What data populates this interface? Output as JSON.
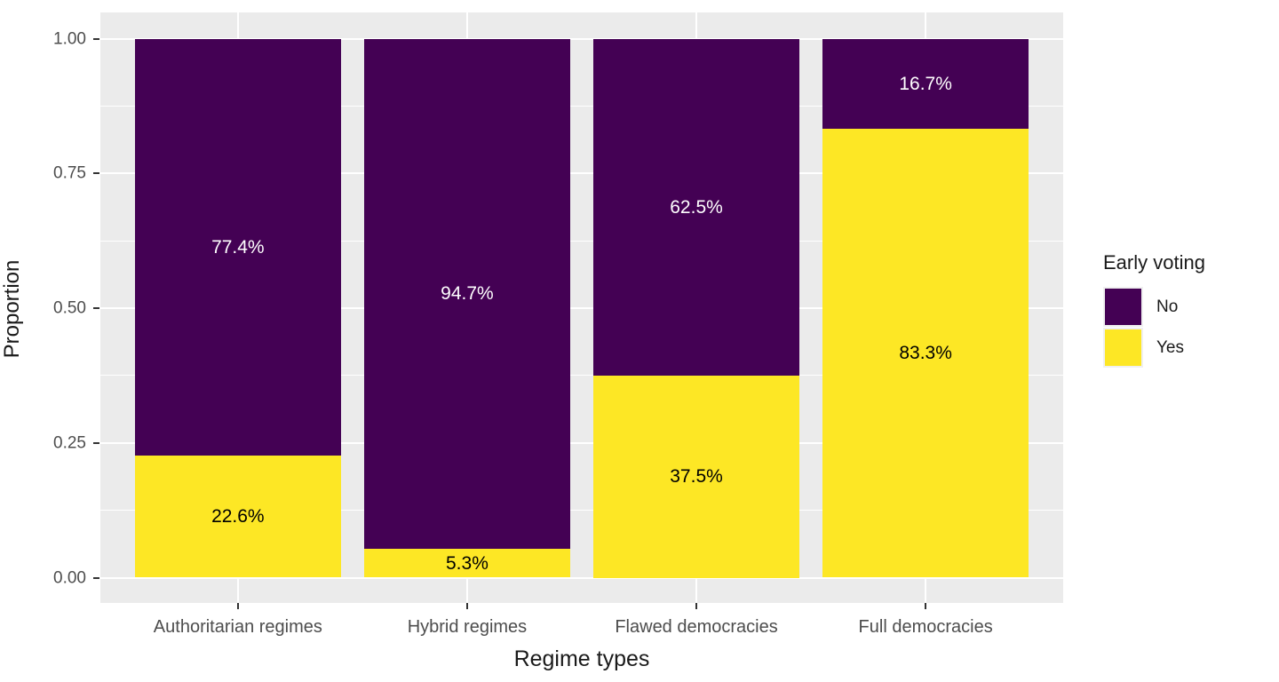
{
  "chart_data": {
    "type": "bar",
    "stacked": true,
    "orientation": "vertical",
    "xlabel": "Regime types",
    "ylabel": "Proportion",
    "categories": [
      "Authoritarian regimes",
      "Hybrid regimes",
      "Flawed democracies",
      "Full democracies"
    ],
    "series": [
      {
        "name": "No",
        "color": "#440154",
        "values": [
          0.774,
          0.947,
          0.625,
          0.167
        ],
        "labels": [
          "77.4%",
          "94.7%",
          "62.5%",
          "16.7%"
        ],
        "label_color": "#FFFFFF"
      },
      {
        "name": "Yes",
        "color": "#FDE725",
        "values": [
          0.226,
          0.053,
          0.375,
          0.833
        ],
        "labels": [
          "22.6%",
          "5.3%",
          "37.5%",
          "83.3%"
        ],
        "label_color": "#000000"
      }
    ],
    "y_ticks": [
      {
        "value": 0.0,
        "label": "0.00"
      },
      {
        "value": 0.25,
        "label": "0.25"
      },
      {
        "value": 0.5,
        "label": "0.50"
      },
      {
        "value": 0.75,
        "label": "0.75"
      },
      {
        "value": 1.0,
        "label": "1.00"
      }
    ],
    "y_minor_ticks": [
      0.125,
      0.375,
      0.625,
      0.875
    ],
    "ylim": [
      0,
      1
    ],
    "grid": true,
    "panel_background": "#EBEBEB",
    "gridline_color": "#FFFFFF",
    "legend": {
      "title": "Early voting",
      "position": "right",
      "entries": [
        {
          "label": "No",
          "color": "#440154"
        },
        {
          "label": "Yes",
          "color": "#FDE725"
        }
      ]
    }
  }
}
